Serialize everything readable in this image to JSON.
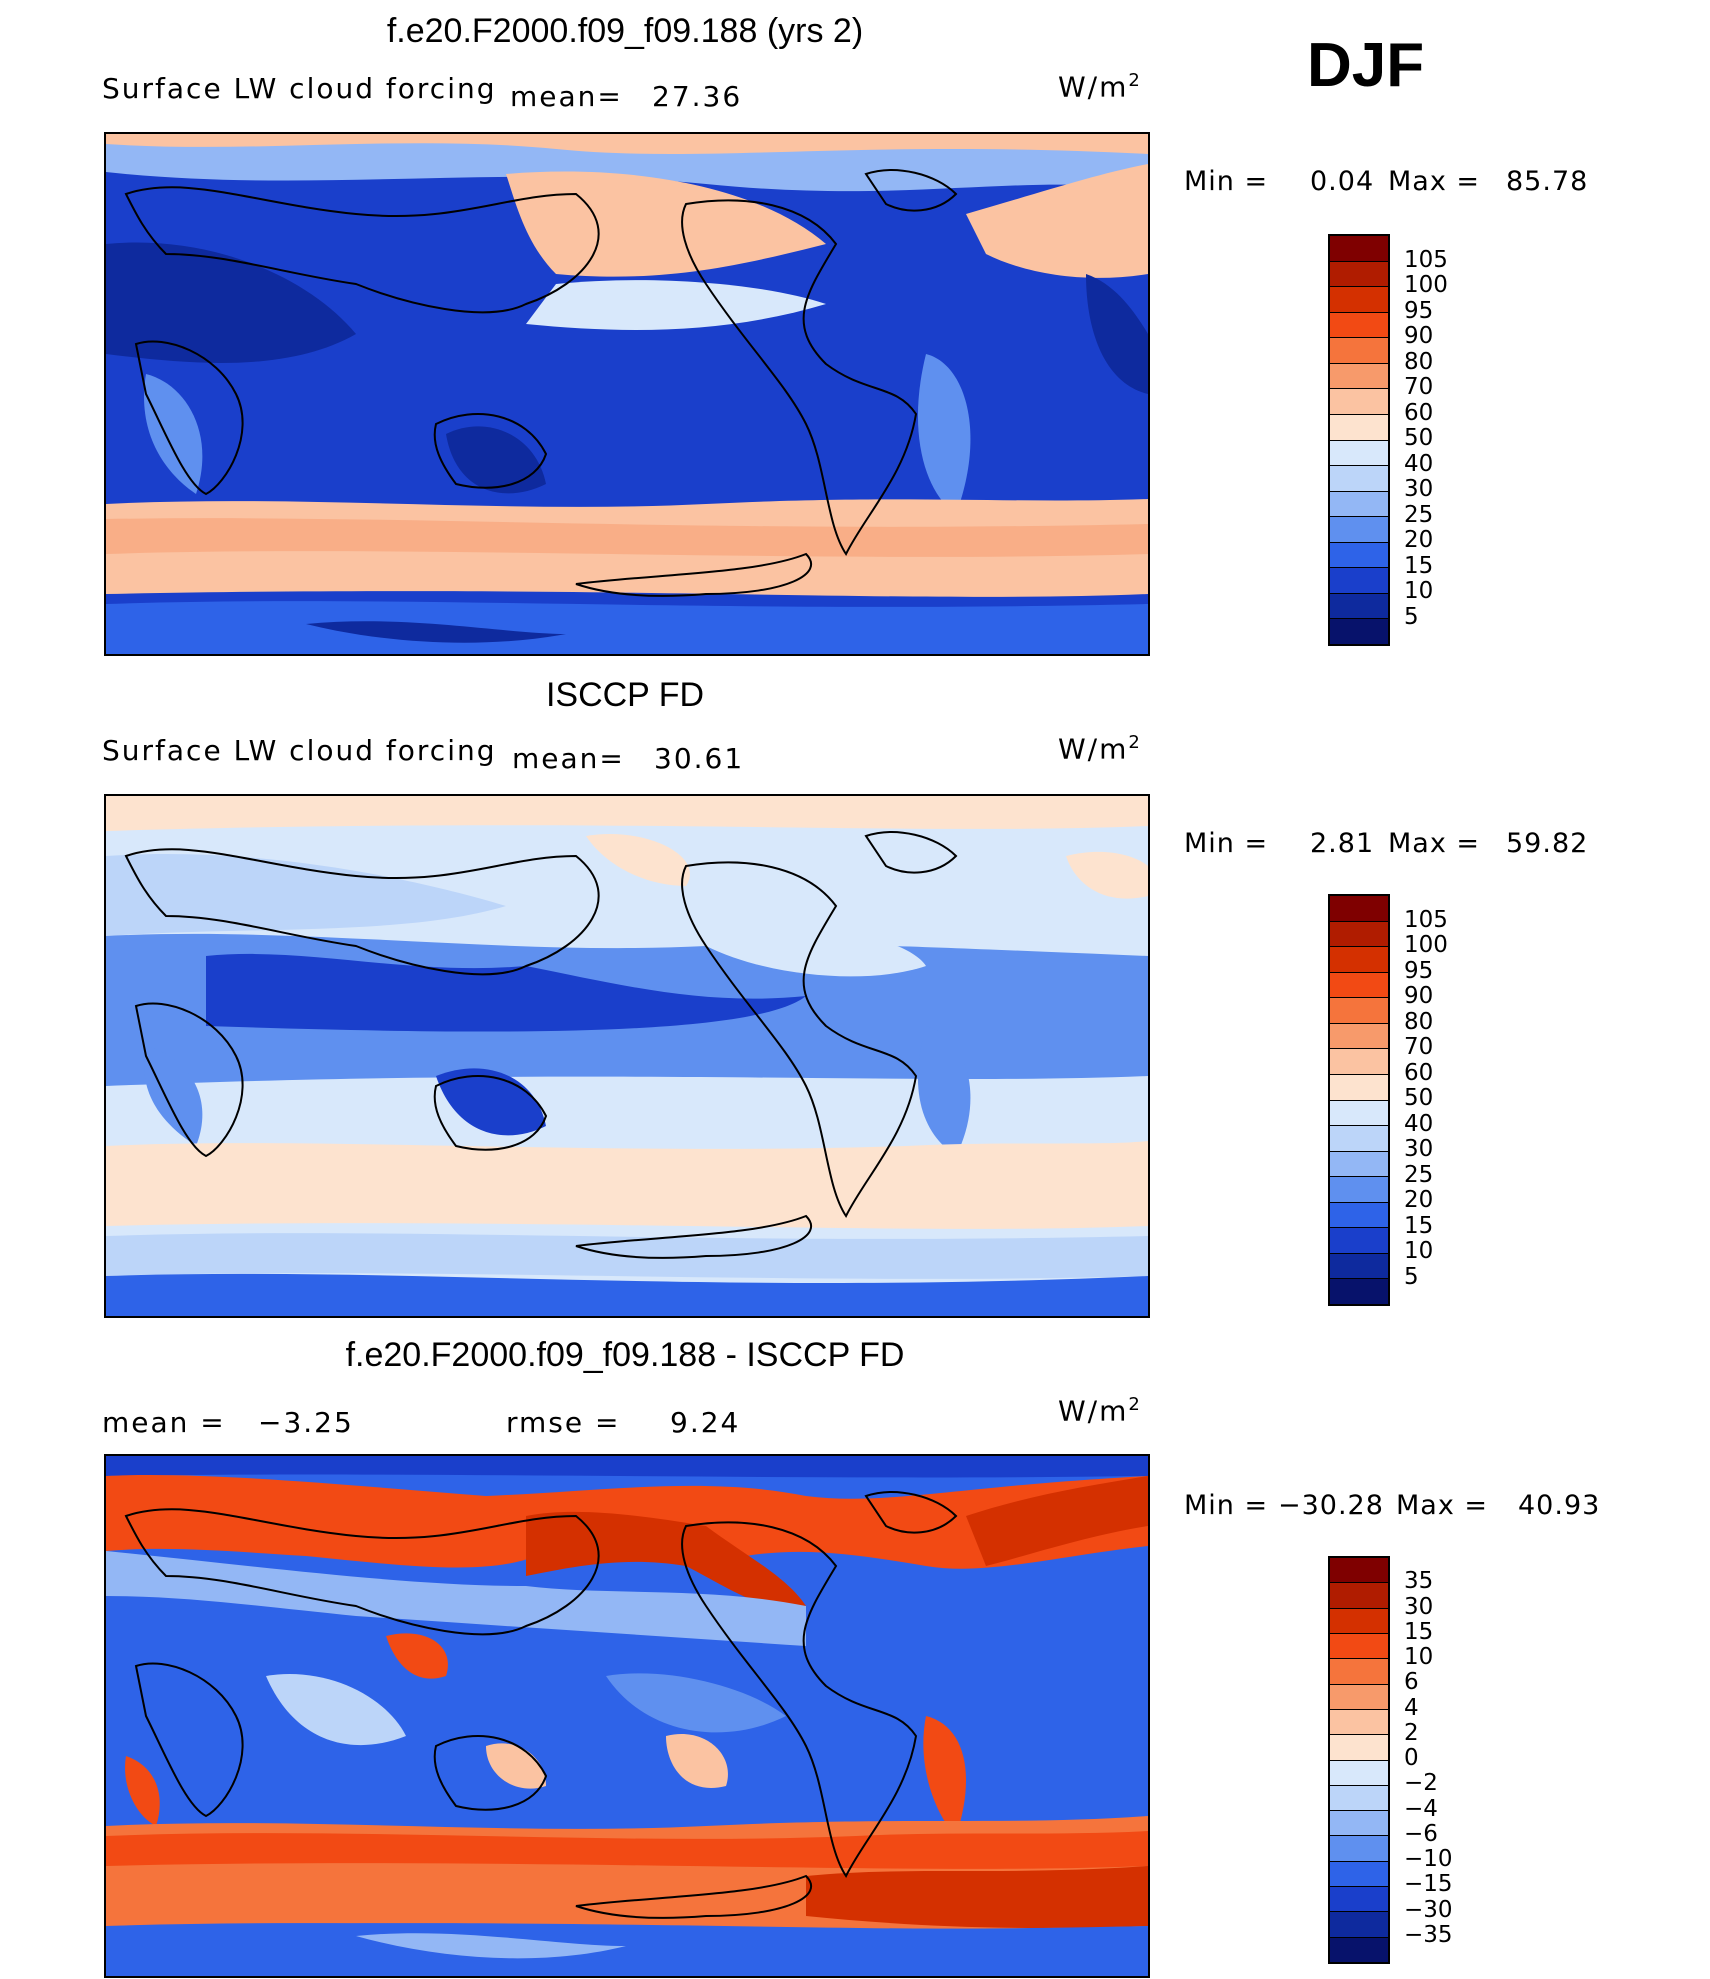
{
  "season": "DJF",
  "panels": [
    {
      "title": "f.e20.F2000.f09_f09.188 (yrs 2)",
      "left_label": "Surface LW cloud forcing",
      "mean_label": "mean=",
      "mean_value": "27.36",
      "units": "W/m",
      "units_exp": "2",
      "min_label": "Min =",
      "min_value": "0.04",
      "max_label": "Max =",
      "max_value": "85.78",
      "colorbar_labels": [
        "105",
        "100",
        "95",
        "90",
        "80",
        "70",
        "60",
        "50",
        "40",
        "30",
        "25",
        "20",
        "15",
        "10",
        "5"
      ]
    },
    {
      "title": "ISCCP FD",
      "left_label": "Surface LW cloud forcing",
      "mean_label": "mean=",
      "mean_value": "30.61",
      "units": "W/m",
      "units_exp": "2",
      "min_label": "Min =",
      "min_value": "2.81",
      "max_label": "Max =",
      "max_value": "59.82",
      "colorbar_labels": [
        "105",
        "100",
        "95",
        "90",
        "80",
        "70",
        "60",
        "50",
        "40",
        "30",
        "25",
        "20",
        "15",
        "10",
        "5"
      ]
    },
    {
      "title": "f.e20.F2000.f09_f09.188 - ISCCP FD",
      "mean_label": "mean =",
      "mean_value": "−3.25",
      "rmse_label": "rmse =",
      "rmse_value": "9.24",
      "units": "W/m",
      "units_exp": "2",
      "min_label": "Min =",
      "min_value": "−30.28",
      "max_label": "Max =",
      "max_value": "40.93",
      "colorbar_labels": [
        "35",
        "30",
        "15",
        "10",
        "6",
        "4",
        "2",
        "0",
        "−2",
        "−4",
        "−6",
        "−10",
        "−15",
        "−30",
        "−35"
      ]
    }
  ],
  "colors": {
    "abs_scale": [
      "#7f0000",
      "#b01c00",
      "#d43000",
      "#f24a14",
      "#f5743c",
      "#f79a6b",
      "#fbc3a2",
      "#fde3cf",
      "#d8e8fb",
      "#bcd5f9",
      "#93b7f5",
      "#5f90ef",
      "#2e63e8",
      "#1a3fcb",
      "#0e2a9e",
      "#07126b"
    ],
    "diff_scale": [
      "#7f0000",
      "#b01c00",
      "#d43000",
      "#f24a14",
      "#f5743c",
      "#f79a6b",
      "#fbc3a2",
      "#fde3cf",
      "#d8e8fb",
      "#bcd5f9",
      "#93b7f5",
      "#5f90ef",
      "#2e63e8",
      "#1a3fcb",
      "#0e2a9e",
      "#07126b"
    ]
  }
}
